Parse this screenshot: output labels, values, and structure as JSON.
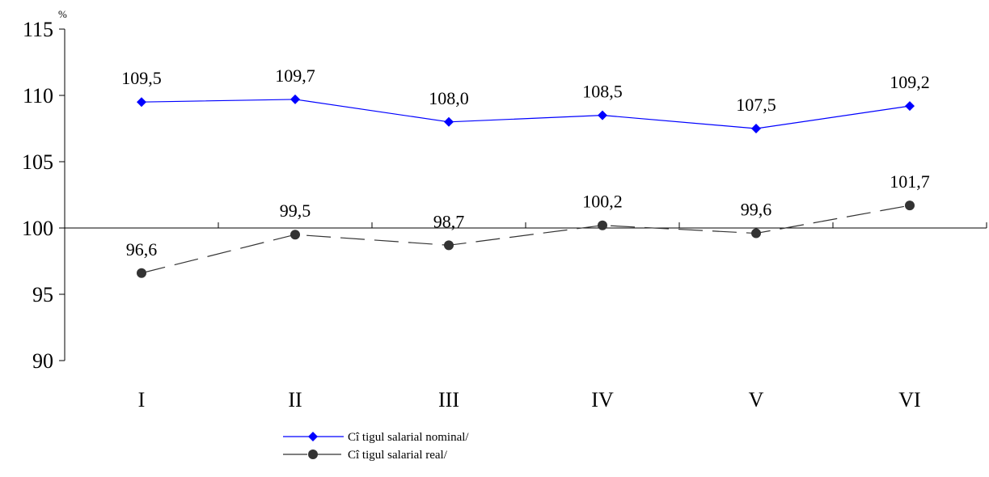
{
  "chart_data": {
    "type": "line",
    "unit_label": "%",
    "categories": [
      "I",
      "II",
      "III",
      "IV",
      "V",
      "VI"
    ],
    "series": [
      {
        "name": "Cî tigul salarial nominal/",
        "values": [
          109.5,
          109.7,
          108.0,
          108.5,
          107.5,
          109.2
        ],
        "labels": [
          "109,5",
          "109,7",
          "108,0",
          "108,5",
          "107,5",
          "109,2"
        ],
        "color": "#0000ff",
        "marker": "diamond",
        "line_style": "solid"
      },
      {
        "name": "Cî tigul salarial real/",
        "values": [
          96.6,
          99.5,
          98.7,
          100.2,
          99.6,
          101.7
        ],
        "labels": [
          "96,6",
          "99,5",
          "98,7",
          "100,2",
          "99,6",
          "101,7"
        ],
        "color": "#333333",
        "marker": "circle",
        "line_style": "dashed"
      }
    ],
    "y_ticks": [
      90,
      95,
      100,
      105,
      110,
      115
    ],
    "ylim": [
      90,
      115
    ],
    "x_axis_crosses_at": 100,
    "grid": false,
    "legend_position": "bottom-center"
  }
}
